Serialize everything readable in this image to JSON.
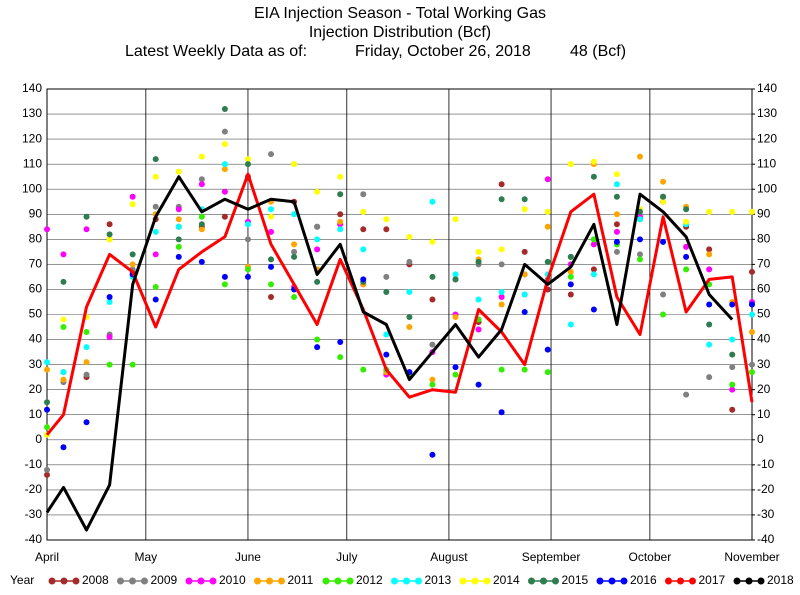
{
  "chart_data": {
    "type": "line",
    "title": "EIA Injection Season - Total Working Gas",
    "subtitle": "Injection Distribution (Bcf)",
    "date_label": "Latest Weekly Data as of:",
    "date": "Friday, October 26, 2018",
    "latest": "48 (Bcf)",
    "legend_title": "Year",
    "legend": "bottom",
    "grid": true,
    "xlim": [
      0,
      214
    ],
    "xticks": [
      {
        "value": 0,
        "label": "April"
      },
      {
        "value": 30,
        "label": "May"
      },
      {
        "value": 61,
        "label": "June"
      },
      {
        "value": 91,
        "label": "July"
      },
      {
        "value": 122,
        "label": "August"
      },
      {
        "value": 153,
        "label": "September"
      },
      {
        "value": 183,
        "label": "October"
      },
      {
        "value": 214,
        "label": "November"
      }
    ],
    "x": [
      0,
      5,
      12,
      19,
      26,
      33,
      40,
      47,
      54,
      61,
      68,
      75,
      82,
      89,
      96,
      103,
      110,
      117,
      124,
      131,
      138,
      145,
      152,
      159,
      166,
      173,
      180,
      187,
      194,
      201,
      208,
      214
    ],
    "ylim": [
      -40,
      140
    ],
    "yticks": [
      -40,
      -30,
      -20,
      -10,
      0,
      10,
      20,
      30,
      40,
      50,
      60,
      70,
      80,
      90,
      100,
      110,
      120,
      130,
      140
    ],
    "y2lim": [
      -40,
      140
    ],
    "y2ticks": [
      -40,
      -30,
      -20,
      -10,
      0,
      10,
      20,
      30,
      40,
      50,
      60,
      70,
      80,
      90,
      100,
      110,
      120,
      130,
      140
    ],
    "series": [
      {
        "name": "2008",
        "color": "#a52a2a",
        "kind": "dots",
        "values": [
          -14,
          27,
          25,
          86,
          67,
          88,
          85,
          85,
          89,
          105,
          57,
          95,
          85,
          90,
          84,
          84,
          70,
          56,
          64,
          47,
          102,
          75,
          60,
          58,
          68,
          86,
          88,
          97,
          85,
          76,
          12,
          67
        ]
      },
      {
        "name": "2009",
        "color": "#808080",
        "kind": "dots",
        "values": [
          -12,
          23,
          26,
          42,
          68,
          93,
          93,
          104,
          123,
          80,
          114,
          75,
          85,
          86,
          98,
          65,
          71,
          38,
          64,
          70,
          70,
          66,
          64,
          73,
          80,
          75,
          74,
          58,
          18,
          25,
          29,
          30
        ]
      },
      {
        "name": "2010",
        "color": "#ff00ff",
        "kind": "dots",
        "values": [
          84,
          74,
          84,
          41,
          97,
          74,
          92,
          102,
          99,
          87,
          83,
          61,
          76,
          86,
          62,
          26,
          27,
          35,
          50,
          44,
          57,
          58,
          104,
          70,
          78,
          83,
          89,
          95,
          77,
          68,
          20,
          55
        ]
      },
      {
        "name": "2011",
        "color": "#ffa500",
        "kind": "dots",
        "values": [
          28,
          24,
          31,
          80,
          70,
          90,
          88,
          84,
          108,
          69,
          95,
          78,
          68,
          87,
          62,
          27,
          45,
          24,
          49,
          72,
          54,
          66,
          85,
          67,
          110,
          90,
          113,
          103,
          93,
          74,
          55,
          43
        ]
      },
      {
        "name": "2012",
        "color": "#33ee00",
        "kind": "dots",
        "values": [
          5,
          45,
          43,
          30,
          30,
          61,
          77,
          89,
          62,
          68,
          62,
          57,
          40,
          33,
          28,
          28,
          26,
          22,
          26,
          48,
          28,
          28,
          27,
          65,
          80,
          78,
          72,
          50,
          68,
          62,
          22,
          27
        ]
      },
      {
        "name": "2013",
        "color": "#00ffff",
        "kind": "dots",
        "values": [
          31,
          27,
          37,
          55,
          65,
          83,
          85,
          92,
          110,
          86,
          92,
          90,
          80,
          84,
          76,
          42,
          59,
          95,
          66,
          56,
          59,
          58,
          66,
          46,
          66,
          102,
          88,
          79,
          86,
          38,
          40,
          50
        ]
      },
      {
        "name": "2014",
        "color": "#ffff00",
        "kind": "dots",
        "values": [
          2,
          48,
          49,
          80,
          94,
          105,
          107,
          113,
          118,
          112,
          89,
          110,
          99,
          105,
          91,
          88,
          81,
          79,
          88,
          75,
          76,
          92,
          91,
          110,
          111,
          106,
          92,
          95,
          87,
          91,
          91,
          91
        ]
      },
      {
        "name": "2015",
        "color": "#2e7d4f",
        "kind": "dots",
        "values": [
          15,
          63,
          89,
          82,
          74,
          112,
          80,
          86,
          132,
          110,
          72,
          73,
          63,
          98,
          63,
          59,
          49,
          65,
          64,
          71,
          96,
          96,
          71,
          73,
          105,
          97,
          91,
          97,
          92,
          46,
          34,
          54
        ]
      },
      {
        "name": "2016",
        "color": "#0000ff",
        "kind": "dots",
        "values": [
          12,
          -3,
          7,
          57,
          66,
          56,
          73,
          71,
          65,
          65,
          69,
          60,
          37,
          39,
          64,
          34,
          27,
          -6,
          29,
          22,
          11,
          51,
          36,
          62,
          52,
          79,
          80,
          79,
          73,
          54,
          54,
          54
        ]
      },
      {
        "name": "2017",
        "color": "#ff0000",
        "kind": "line",
        "values": [
          2,
          10,
          53,
          74,
          67,
          45,
          68,
          75,
          81,
          106,
          78,
          62,
          46,
          72,
          52,
          28,
          17,
          20,
          19,
          52,
          43,
          30,
          64,
          91,
          98,
          57,
          42,
          89,
          51,
          64,
          65,
          15
        ]
      },
      {
        "name": "2018",
        "color": "#000000",
        "kind": "line",
        "values": [
          -29,
          -19,
          -36,
          -18,
          62,
          89,
          105,
          91,
          96,
          92,
          96,
          95,
          66,
          78,
          51,
          46,
          24,
          35,
          46,
          33,
          44,
          70,
          62,
          69,
          86,
          46,
          98,
          91,
          81,
          58,
          48,
          null
        ]
      }
    ]
  }
}
